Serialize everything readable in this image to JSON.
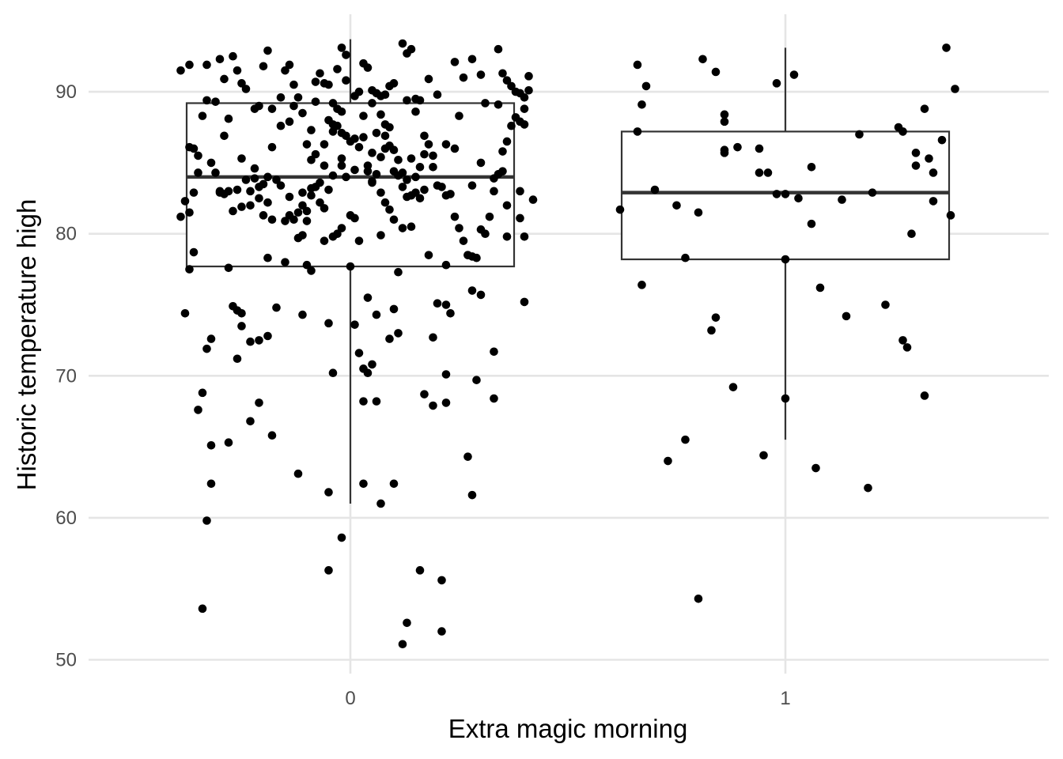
{
  "chart_data": {
    "type": "boxplot",
    "xlabel": "Extra magic morning",
    "ylabel": "Historic temperature high",
    "categories": [
      "0",
      "1"
    ],
    "ylim": [
      49,
      95
    ],
    "yticks": [
      50,
      60,
      70,
      80,
      90
    ],
    "grid": true,
    "colors": {
      "points": "#000000",
      "box": "#333333",
      "grid": "#e5e5e5"
    },
    "boxes": [
      {
        "category": "0",
        "lower_whisker": 61.0,
        "q1": 77.7,
        "median": 84.0,
        "q3": 89.2,
        "upper_whisker": 93.7
      },
      {
        "category": "1",
        "lower_whisker": 65.5,
        "q1": 78.2,
        "median": 82.9,
        "q3": 87.2,
        "upper_whisker": 93.1
      }
    ],
    "points": [
      [
        -0.39,
        91.5
      ],
      [
        -0.37,
        91.9
      ],
      [
        -0.36,
        86.0
      ],
      [
        -0.38,
        82.3
      ],
      [
        -0.37,
        81.5
      ],
      [
        -0.39,
        81.2
      ],
      [
        -0.37,
        77.5
      ],
      [
        -0.38,
        74.4
      ],
      [
        -0.36,
        78.7
      ],
      [
        -0.35,
        85.5
      ],
      [
        -0.34,
        88.3
      ],
      [
        -0.33,
        91.9
      ],
      [
        -0.32,
        85.0
      ],
      [
        -0.31,
        89.3
      ],
      [
        -0.3,
        92.3
      ],
      [
        -0.29,
        90.9
      ],
      [
        -0.28,
        88.1
      ],
      [
        -0.31,
        84.3
      ],
      [
        -0.3,
        83.0
      ],
      [
        -0.29,
        86.9
      ],
      [
        -0.27,
        92.5
      ],
      [
        -0.26,
        91.5
      ],
      [
        -0.25,
        90.6
      ],
      [
        -0.24,
        90.2
      ],
      [
        -0.22,
        88.8
      ],
      [
        -0.21,
        89.0
      ],
      [
        -0.2,
        91.8
      ],
      [
        -0.19,
        92.9
      ],
      [
        -0.25,
        85.3
      ],
      [
        -0.23,
        82.0
      ],
      [
        -0.22,
        83.9
      ],
      [
        -0.21,
        82.5
      ],
      [
        -0.2,
        81.3
      ],
      [
        -0.19,
        84.0
      ],
      [
        -0.18,
        86.1
      ],
      [
        -0.17,
        83.8
      ],
      [
        -0.16,
        89.6
      ],
      [
        -0.15,
        91.5
      ],
      [
        -0.14,
        91.9
      ],
      [
        -0.12,
        89.6
      ],
      [
        -0.11,
        88.5
      ],
      [
        -0.1,
        86.3
      ],
      [
        -0.09,
        87.3
      ],
      [
        -0.08,
        89.3
      ],
      [
        -0.07,
        91.3
      ],
      [
        -0.06,
        90.6
      ],
      [
        -0.05,
        90.5
      ],
      [
        -0.04,
        89.2
      ],
      [
        -0.03,
        91.6
      ],
      [
        -0.02,
        93.1
      ],
      [
        -0.01,
        92.6
      ],
      [
        -0.03,
        87.6
      ],
      [
        -0.04,
        87.7
      ],
      [
        -0.05,
        88.0
      ],
      [
        -0.06,
        86.3
      ],
      [
        -0.08,
        83.3
      ],
      [
        -0.09,
        83.2
      ],
      [
        -0.1,
        81.6
      ],
      [
        -0.11,
        82.0
      ],
      [
        -0.12,
        81.5
      ],
      [
        -0.07,
        82.2
      ],
      [
        -0.06,
        81.8
      ],
      [
        -0.05,
        83.1
      ],
      [
        -0.04,
        84.1
      ],
      [
        -0.02,
        85.3
      ],
      [
        -0.01,
        86.9
      ],
      [
        0.0,
        86.5
      ],
      [
        0.01,
        86.7
      ],
      [
        0.02,
        86.1
      ],
      [
        0.03,
        88.3
      ],
      [
        0.04,
        84.8
      ],
      [
        0.05,
        83.6
      ],
      [
        0.06,
        84.2
      ],
      [
        0.07,
        85.4
      ],
      [
        0.08,
        86.9
      ],
      [
        0.09,
        87.5
      ],
      [
        0.1,
        85.9
      ],
      [
        0.11,
        84.1
      ],
      [
        0.12,
        83.3
      ],
      [
        0.13,
        82.6
      ],
      [
        0.14,
        82.7
      ],
      [
        0.15,
        84.0
      ],
      [
        0.16,
        84.7
      ],
      [
        0.17,
        86.9
      ],
      [
        0.18,
        86.3
      ],
      [
        0.19,
        85.5
      ],
      [
        0.2,
        83.4
      ],
      [
        0.21,
        83.3
      ],
      [
        0.22,
        82.7
      ],
      [
        0.23,
        82.8
      ],
      [
        0.24,
        81.2
      ],
      [
        0.25,
        80.4
      ],
      [
        0.26,
        79.5
      ],
      [
        0.27,
        78.5
      ],
      [
        0.28,
        78.4
      ],
      [
        0.29,
        78.3
      ],
      [
        0.3,
        80.3
      ],
      [
        0.31,
        80.0
      ],
      [
        0.32,
        81.2
      ],
      [
        0.33,
        83.0
      ],
      [
        0.34,
        84.2
      ],
      [
        0.35,
        85.8
      ],
      [
        0.36,
        86.5
      ],
      [
        0.37,
        87.6
      ],
      [
        0.38,
        88.2
      ],
      [
        0.39,
        87.9
      ],
      [
        0.4,
        89.6
      ],
      [
        0.38,
        90.0
      ],
      [
        0.37,
        90.4
      ],
      [
        0.36,
        90.8
      ],
      [
        0.35,
        91.3
      ],
      [
        0.34,
        93.0
      ],
      [
        0.12,
        93.4
      ],
      [
        0.13,
        92.7
      ],
      [
        0.14,
        93.0
      ],
      [
        0.15,
        89.5
      ],
      [
        0.16,
        89.4
      ],
      [
        0.1,
        90.6
      ],
      [
        0.09,
        90.4
      ],
      [
        0.08,
        89.8
      ],
      [
        0.07,
        89.7
      ],
      [
        0.06,
        89.9
      ],
      [
        0.05,
        90.1
      ],
      [
        0.04,
        91.7
      ],
      [
        0.03,
        92.0
      ],
      [
        0.02,
        90.0
      ],
      [
        0.01,
        89.7
      ],
      [
        -0.01,
        90.8
      ],
      [
        -0.02,
        88.6
      ],
      [
        -0.03,
        88.8
      ],
      [
        -0.04,
        87.2
      ],
      [
        -0.06,
        84.8
      ],
      [
        -0.08,
        85.6
      ],
      [
        -0.09,
        82.7
      ],
      [
        -0.1,
        80.9
      ],
      [
        -0.11,
        79.9
      ],
      [
        -0.12,
        79.7
      ],
      [
        -0.13,
        81.0
      ],
      [
        -0.14,
        81.3
      ],
      [
        -0.15,
        80.9
      ],
      [
        -0.16,
        83.4
      ],
      [
        -0.18,
        81.0
      ],
      [
        -0.19,
        82.2
      ],
      [
        -0.2,
        83.5
      ],
      [
        -0.21,
        83.3
      ],
      [
        -0.22,
        84.6
      ],
      [
        -0.23,
        83.0
      ],
      [
        -0.24,
        83.8
      ],
      [
        -0.25,
        81.9
      ],
      [
        -0.26,
        83.1
      ],
      [
        -0.27,
        81.6
      ],
      [
        -0.28,
        83.0
      ],
      [
        -0.29,
        82.8
      ],
      [
        -0.3,
        82.9
      ],
      [
        0.04,
        75.5
      ],
      [
        -0.04,
        79.8
      ],
      [
        -0.03,
        80.0
      ],
      [
        -0.02,
        80.4
      ],
      [
        0.02,
        79.5
      ],
      [
        0.01,
        81.1
      ],
      [
        0.07,
        79.9
      ],
      [
        0.18,
        78.5
      ],
      [
        0.22,
        77.8
      ],
      [
        0.11,
        77.3
      ],
      [
        -0.19,
        78.3
      ],
      [
        -0.15,
        78.0
      ],
      [
        -0.1,
        77.8
      ],
      [
        -0.09,
        77.4
      ],
      [
        0.0,
        77.7
      ],
      [
        -0.28,
        77.6
      ],
      [
        0.27,
        78.5
      ],
      [
        0.28,
        76.0
      ],
      [
        0.3,
        75.7
      ],
      [
        0.4,
        75.2
      ],
      [
        0.2,
        75.1
      ],
      [
        0.22,
        75.0
      ],
      [
        0.23,
        74.4
      ],
      [
        0.1,
        74.7
      ],
      [
        0.06,
        74.3
      ],
      [
        0.01,
        73.6
      ],
      [
        -0.05,
        73.7
      ],
      [
        0.11,
        73.0
      ],
      [
        0.09,
        72.6
      ],
      [
        0.19,
        72.7
      ],
      [
        -0.17,
        74.8
      ],
      [
        -0.11,
        74.3
      ],
      [
        -0.25,
        74.4
      ],
      [
        -0.27,
        74.9
      ],
      [
        -0.26,
        74.6
      ],
      [
        -0.25,
        73.5
      ],
      [
        -0.23,
        72.4
      ],
      [
        -0.21,
        72.5
      ],
      [
        -0.19,
        72.8
      ],
      [
        -0.32,
        72.6
      ],
      [
        -0.33,
        71.9
      ],
      [
        -0.26,
        71.2
      ],
      [
        0.02,
        71.6
      ],
      [
        0.03,
        70.5
      ],
      [
        0.04,
        70.2
      ],
      [
        0.05,
        70.8
      ],
      [
        -0.04,
        70.2
      ],
      [
        0.22,
        70.1
      ],
      [
        0.29,
        69.7
      ],
      [
        0.33,
        71.7
      ],
      [
        0.33,
        68.4
      ],
      [
        0.17,
        68.7
      ],
      [
        0.19,
        67.9
      ],
      [
        0.22,
        68.1
      ],
      [
        0.06,
        68.2
      ],
      [
        0.03,
        68.2
      ],
      [
        -0.23,
        66.8
      ],
      [
        -0.21,
        68.1
      ],
      [
        -0.28,
        65.3
      ],
      [
        -0.32,
        65.1
      ],
      [
        -0.35,
        67.6
      ],
      [
        -0.34,
        68.8
      ],
      [
        -0.18,
        65.8
      ],
      [
        -0.12,
        63.1
      ],
      [
        0.03,
        62.4
      ],
      [
        0.1,
        62.4
      ],
      [
        0.07,
        61.0
      ],
      [
        -0.05,
        61.8
      ],
      [
        0.27,
        64.3
      ],
      [
        0.28,
        61.6
      ],
      [
        -0.32,
        62.4
      ],
      [
        -0.33,
        59.8
      ],
      [
        -0.02,
        58.6
      ],
      [
        -0.05,
        56.3
      ],
      [
        0.16,
        56.3
      ],
      [
        0.21,
        55.6
      ],
      [
        0.13,
        52.6
      ],
      [
        0.21,
        52.0
      ],
      [
        0.12,
        51.1
      ],
      [
        -0.34,
        53.6
      ],
      [
        0.31,
        89.2
      ],
      [
        0.3,
        91.2
      ],
      [
        0.28,
        92.3
      ],
      [
        0.26,
        91.0
      ],
      [
        0.24,
        92.1
      ],
      [
        0.2,
        89.8
      ],
      [
        0.18,
        90.9
      ],
      [
        0.33,
        83.9
      ],
      [
        0.35,
        84.4
      ],
      [
        0.36,
        82.0
      ],
      [
        0.39,
        83.0
      ],
      [
        0.39,
        81.1
      ],
      [
        0.4,
        79.8
      ],
      [
        0.36,
        79.8
      ],
      [
        -0.36,
        82.9
      ],
      [
        -0.37,
        86.1
      ],
      [
        -0.35,
        84.3
      ],
      [
        0.3,
        85.0
      ],
      [
        0.28,
        83.4
      ],
      [
        -0.33,
        89.4
      ],
      [
        0.41,
        91.1
      ],
      [
        0.42,
        82.4
      ],
      [
        0.39,
        89.9
      ],
      [
        0.41,
        90.1
      ],
      [
        0.4,
        88.8
      ],
      [
        0.4,
        87.7
      ],
      [
        0.34,
        89.1
      ],
      [
        0.25,
        88.3
      ],
      [
        -0.08,
        90.7
      ],
      [
        -0.13,
        90.5
      ],
      [
        -0.18,
        88.8
      ],
      [
        -0.16,
        87.6
      ],
      [
        -0.14,
        87.9
      ],
      [
        -0.13,
        89.0
      ],
      [
        0.13,
        89.4
      ],
      [
        0.15,
        88.6
      ],
      [
        0.17,
        85.6
      ],
      [
        0.19,
        84.7
      ],
      [
        0.22,
        86.3
      ],
      [
        0.24,
        86.0
      ],
      [
        0.14,
        85.3
      ],
      [
        0.08,
        87.7
      ],
      [
        0.07,
        88.4
      ],
      [
        0.05,
        89.2
      ],
      [
        0.06,
        87.1
      ],
      [
        0.08,
        86.0
      ],
      [
        0.09,
        86.2
      ],
      [
        0.1,
        84.4
      ],
      [
        0.11,
        85.2
      ],
      [
        0.12,
        84.3
      ],
      [
        0.13,
        83.8
      ],
      [
        0.15,
        82.9
      ],
      [
        0.16,
        82.5
      ],
      [
        0.17,
        83.1
      ],
      [
        0.0,
        81.3
      ],
      [
        0.01,
        84.5
      ],
      [
        -0.01,
        84.0
      ],
      [
        -0.02,
        84.8
      ],
      [
        0.05,
        85.7
      ],
      [
        0.07,
        82.9
      ],
      [
        0.08,
        82.2
      ],
      [
        0.09,
        81.7
      ],
      [
        0.1,
        81.0
      ],
      [
        0.12,
        80.4
      ],
      [
        0.14,
        80.5
      ],
      [
        -0.06,
        79.5
      ],
      [
        -0.14,
        82.6
      ],
      [
        -0.11,
        82.9
      ],
      [
        -0.07,
        83.6
      ],
      [
        -0.09,
        85.2
      ],
      [
        -0.02,
        87.1
      ],
      [
        0.03,
        86.8
      ],
      [
        0.04,
        84.4
      ],
      [
        0.05,
        83.7
      ],
      [
        0.62,
        81.7
      ],
      [
        0.66,
        91.9
      ],
      [
        0.68,
        90.4
      ],
      [
        0.67,
        89.1
      ],
      [
        0.66,
        87.2
      ],
      [
        0.7,
        83.1
      ],
      [
        0.67,
        76.4
      ],
      [
        0.73,
        64.0
      ],
      [
        0.75,
        82.0
      ],
      [
        0.77,
        78.3
      ],
      [
        0.77,
        65.5
      ],
      [
        0.8,
        81.5
      ],
      [
        0.81,
        92.3
      ],
      [
        0.8,
        54.3
      ],
      [
        0.83,
        73.2
      ],
      [
        0.84,
        74.1
      ],
      [
        0.84,
        91.4
      ],
      [
        0.86,
        88.4
      ],
      [
        0.86,
        87.9
      ],
      [
        0.86,
        85.9
      ],
      [
        0.86,
        85.7
      ],
      [
        0.88,
        69.2
      ],
      [
        0.89,
        86.1
      ],
      [
        0.94,
        86.0
      ],
      [
        0.94,
        84.3
      ],
      [
        0.95,
        64.4
      ],
      [
        0.96,
        84.3
      ],
      [
        0.98,
        82.8
      ],
      [
        0.98,
        90.6
      ],
      [
        1.0,
        82.8
      ],
      [
        1.0,
        78.2
      ],
      [
        1.0,
        68.4
      ],
      [
        1.02,
        91.2
      ],
      [
        1.03,
        82.5
      ],
      [
        1.06,
        80.7
      ],
      [
        1.06,
        84.7
      ],
      [
        1.07,
        63.5
      ],
      [
        1.08,
        76.2
      ],
      [
        1.13,
        82.4
      ],
      [
        1.14,
        74.2
      ],
      [
        1.17,
        87.0
      ],
      [
        1.19,
        62.1
      ],
      [
        1.2,
        82.9
      ],
      [
        1.23,
        75.0
      ],
      [
        1.26,
        87.5
      ],
      [
        1.27,
        87.2
      ],
      [
        1.27,
        72.5
      ],
      [
        1.28,
        72.0
      ],
      [
        1.29,
        80.0
      ],
      [
        1.3,
        84.8
      ],
      [
        1.3,
        85.7
      ],
      [
        1.32,
        88.8
      ],
      [
        1.32,
        68.6
      ],
      [
        1.33,
        85.3
      ],
      [
        1.34,
        82.3
      ],
      [
        1.34,
        84.3
      ],
      [
        1.36,
        86.6
      ],
      [
        1.37,
        93.1
      ],
      [
        1.38,
        81.3
      ],
      [
        1.39,
        90.2
      ]
    ]
  }
}
